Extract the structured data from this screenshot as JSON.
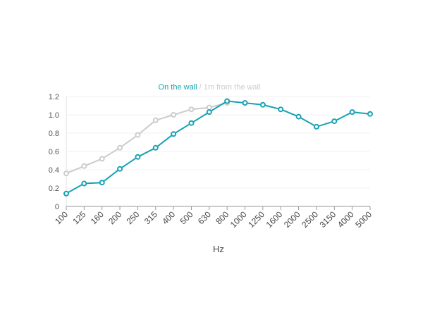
{
  "chart_data": {
    "type": "line",
    "categories": [
      "100",
      "125",
      "160",
      "200",
      "250",
      "315",
      "400",
      "500",
      "630",
      "800",
      "1000",
      "1250",
      "1600",
      "2000",
      "2500",
      "3150",
      "4000",
      "5000"
    ],
    "series": [
      {
        "name": "On the wall",
        "color": "#17a2b3",
        "values": [
          0.14,
          0.25,
          0.26,
          0.41,
          0.54,
          0.64,
          0.79,
          0.91,
          1.03,
          1.15,
          1.13,
          1.11,
          1.06,
          0.98,
          0.87,
          0.93,
          1.03,
          1.01
        ]
      },
      {
        "name": "1m from the wall",
        "color": "#cccccc",
        "values": [
          0.36,
          0.44,
          0.52,
          0.64,
          0.78,
          0.94,
          1.0,
          1.06,
          1.08,
          1.13,
          null,
          null,
          null,
          null,
          null,
          null,
          null,
          null
        ]
      }
    ],
    "legend_separator": " / ",
    "legend_position": "top-center",
    "xlabel": "Hz",
    "ylabel": "",
    "ylim": [
      0,
      1.2
    ],
    "yticks": [
      "0",
      "0.2",
      "0.4",
      "0.6",
      "0.8",
      "1.0",
      "1.2"
    ],
    "ytick_values": [
      0,
      0.2,
      0.4,
      0.6,
      0.8,
      1.0,
      1.2
    ],
    "grid": true
  }
}
